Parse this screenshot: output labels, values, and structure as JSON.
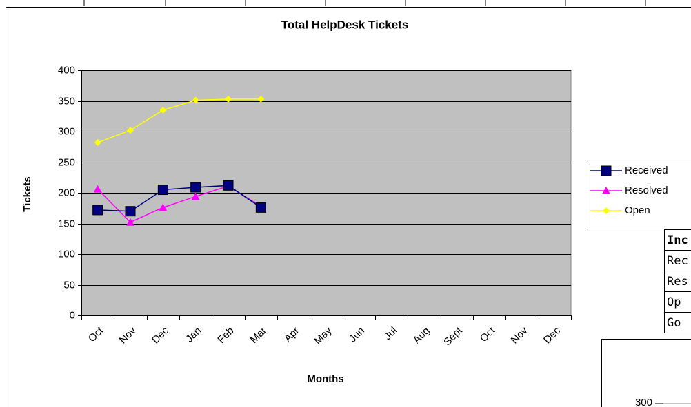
{
  "chart_data": {
    "type": "line",
    "title": "Total HelpDesk Tickets",
    "x_label": "Months",
    "y_label": "Tickets",
    "categories": [
      "Oct",
      "Nov",
      "Dec",
      "Jan",
      "Feb",
      "Mar",
      "Apr",
      "May",
      "Jun",
      "Jul",
      "Aug",
      "Sept",
      "Oct",
      "Nov",
      "Dec"
    ],
    "series": [
      {
        "name": "Received",
        "color": "#000080",
        "marker": "square",
        "values": [
          172,
          170,
          205,
          209,
          212,
          176,
          null,
          null,
          null,
          null,
          null,
          null,
          null,
          null,
          null
        ]
      },
      {
        "name": "Resolved",
        "color": "#ff00ff",
        "marker": "triangle",
        "values": [
          206,
          152,
          176,
          194,
          211,
          178,
          null,
          null,
          null,
          null,
          null,
          null,
          null,
          null,
          null
        ]
      },
      {
        "name": "Open",
        "color": "#ffff00",
        "marker": "diamond",
        "values": [
          282,
          302,
          335,
          351,
          353,
          353,
          null,
          null,
          null,
          null,
          null,
          null,
          null,
          null,
          null
        ]
      }
    ],
    "ylim": [
      0,
      400
    ],
    "yticks": [
      0,
      50,
      100,
      150,
      200,
      250,
      300,
      350,
      400
    ],
    "grid": true,
    "legend": "right",
    "plot_background": "#c0c0c0"
  },
  "overlay": {
    "table_cells": [
      "Inc",
      "Rec",
      "Res",
      "Op",
      "Go"
    ],
    "chart_tick": "300"
  }
}
